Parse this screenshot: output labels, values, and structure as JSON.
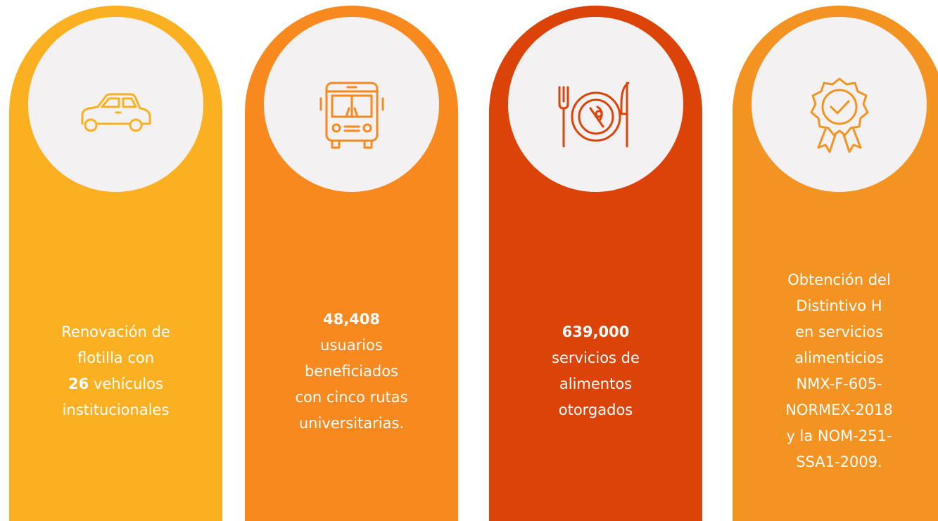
{
  "cards": [
    {
      "color": "#fbb021",
      "lines": [
        [
          {
            "text": "Renovación de",
            "bold": false
          }
        ],
        [
          {
            "text": "flotilla con",
            "bold": false
          }
        ],
        [
          {
            "text": "26",
            "bold": true
          },
          {
            "text": " vehículos",
            "bold": false
          }
        ],
        [
          {
            "text": "institucionales",
            "bold": false
          }
        ]
      ]
    },
    {
      "color": "#f7891f",
      "lines": [
        [
          {
            "text": "48,408",
            "bold": true
          }
        ],
        [
          {
            "text": "usuarios",
            "bold": false
          }
        ],
        [
          {
            "text": "beneficiados",
            "bold": false
          }
        ],
        [
          {
            "text": "con cinco rutas",
            "bold": false
          }
        ],
        [
          {
            "text": "universitarias.",
            "bold": false
          }
        ]
      ]
    },
    {
      "color": "#db4308",
      "lines": [
        [
          {
            "text": "639,000",
            "bold": true
          }
        ],
        [
          {
            "text": "servicios de",
            "bold": false
          }
        ],
        [
          {
            "text": "alimentos",
            "bold": false
          }
        ],
        [
          {
            "text": "otorgados",
            "bold": false
          }
        ]
      ]
    },
    {
      "color": "#f39322",
      "lines": [
        [
          {
            "text": "Obtención del",
            "bold": false
          }
        ],
        [
          {
            "text": "Distintivo H",
            "bold": false
          }
        ],
        [
          {
            "text": "en servicios",
            "bold": false
          }
        ],
        [
          {
            "text": "alimenticios",
            "bold": false
          }
        ],
        [
          {
            "text": "NMX-F-605-",
            "bold": false
          }
        ],
        [
          {
            "text": "NORMEX-2018",
            "bold": false
          }
        ],
        [
          {
            "text": "y la NOM-251-",
            "bold": false
          }
        ],
        [
          {
            "text": "SSA1-2009.",
            "bold": false
          }
        ]
      ]
    }
  ]
}
